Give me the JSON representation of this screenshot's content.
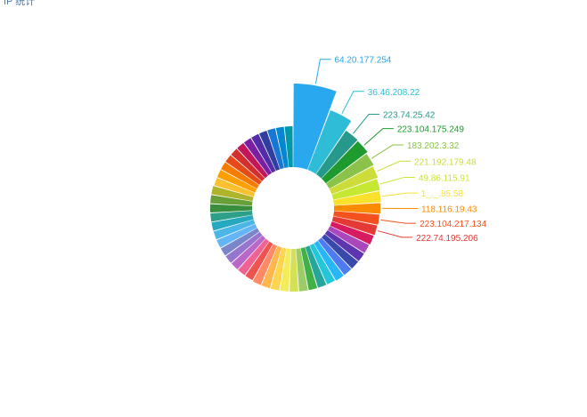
{
  "page": {
    "corner_title": "IP 统计"
  },
  "chart_data": {
    "type": "pie",
    "variant": "rose-donut",
    "title": "IP 统计",
    "slices": [
      {
        "label": "64.20.177.254",
        "value": 100,
        "color": "#29a8f0"
      },
      {
        "label": "36.46.208.22",
        "value": 65,
        "color": "#2fbcd6"
      },
      {
        "label": "223.74.25.42",
        "value": 47,
        "color": "#26998b"
      },
      {
        "label": "223.104.175.249",
        "value": 46,
        "color": "#1e9a2e"
      },
      {
        "label": "183.202.3.32",
        "value": 43,
        "color": "#8bc34a"
      },
      {
        "label": "221.192.179.48",
        "value": 41,
        "color": "#cddc39"
      },
      {
        "label": "49.86.115.91",
        "value": 39,
        "color": "#c6e832"
      },
      {
        "label": "1_._.85.58",
        "value": 38,
        "color": "#f9e12c"
      },
      {
        "label": "118.116.19.43",
        "value": 37,
        "color": "#fb8c00"
      },
      {
        "label": "223.104.217.134",
        "value": 36,
        "color": "#f4511e"
      },
      {
        "label": "222.74.195.206",
        "value": 35,
        "color": "#e53935"
      },
      {
        "label": "",
        "value": 34,
        "color": "#d81b60"
      },
      {
        "label": "",
        "value": 33,
        "color": "#ab47bc"
      },
      {
        "label": "",
        "value": 33,
        "color": "#5e35b1"
      },
      {
        "label": "",
        "value": 33,
        "color": "#3949ab"
      },
      {
        "label": "",
        "value": 33,
        "color": "#4e7bf0"
      },
      {
        "label": "",
        "value": 33,
        "color": "#29b6f6"
      },
      {
        "label": "",
        "value": 32,
        "color": "#26c6da"
      },
      {
        "label": "",
        "value": 32,
        "color": "#26a69a"
      },
      {
        "label": "",
        "value": 32,
        "color": "#43b047"
      },
      {
        "label": "",
        "value": 32,
        "color": "#9ccc65"
      },
      {
        "label": "",
        "value": 32,
        "color": "#d4e157"
      },
      {
        "label": "",
        "value": 32,
        "color": "#f5ec5a"
      },
      {
        "label": "",
        "value": 32,
        "color": "#ffd54f"
      },
      {
        "label": "",
        "value": 32,
        "color": "#ffb74d"
      },
      {
        "label": "",
        "value": 32,
        "color": "#ff8a65"
      },
      {
        "label": "",
        "value": 31,
        "color": "#ef5350"
      },
      {
        "label": "",
        "value": 31,
        "color": "#f06292"
      },
      {
        "label": "",
        "value": 31,
        "color": "#ba68c8"
      },
      {
        "label": "",
        "value": 31,
        "color": "#9575cd"
      },
      {
        "label": "",
        "value": 31,
        "color": "#7986cb"
      },
      {
        "label": "",
        "value": 31,
        "color": "#64b5f6"
      },
      {
        "label": "",
        "value": 31,
        "color": "#4db6e8"
      },
      {
        "label": "",
        "value": 31,
        "color": "#26a8c0"
      },
      {
        "label": "",
        "value": 31,
        "color": "#2e9f88"
      },
      {
        "label": "",
        "value": 31,
        "color": "#388e3c"
      },
      {
        "label": "",
        "value": 31,
        "color": "#689f38"
      },
      {
        "label": "",
        "value": 31,
        "color": "#afb42b"
      },
      {
        "label": "",
        "value": 30,
        "color": "#fbc02d"
      },
      {
        "label": "",
        "value": 30,
        "color": "#ffa000"
      },
      {
        "label": "",
        "value": 30,
        "color": "#f57c00"
      },
      {
        "label": "",
        "value": 30,
        "color": "#e64a19"
      },
      {
        "label": "",
        "value": 30,
        "color": "#d32f2f"
      },
      {
        "label": "",
        "value": 30,
        "color": "#c2185b"
      },
      {
        "label": "",
        "value": 30,
        "color": "#7b1fa2"
      },
      {
        "label": "",
        "value": 30,
        "color": "#512da8"
      },
      {
        "label": "",
        "value": 30,
        "color": "#303f9f"
      },
      {
        "label": "",
        "value": 30,
        "color": "#1976d2"
      },
      {
        "label": "",
        "value": 30,
        "color": "#0288d1"
      },
      {
        "label": "",
        "value": 30,
        "color": "#0097a7"
      }
    ]
  }
}
